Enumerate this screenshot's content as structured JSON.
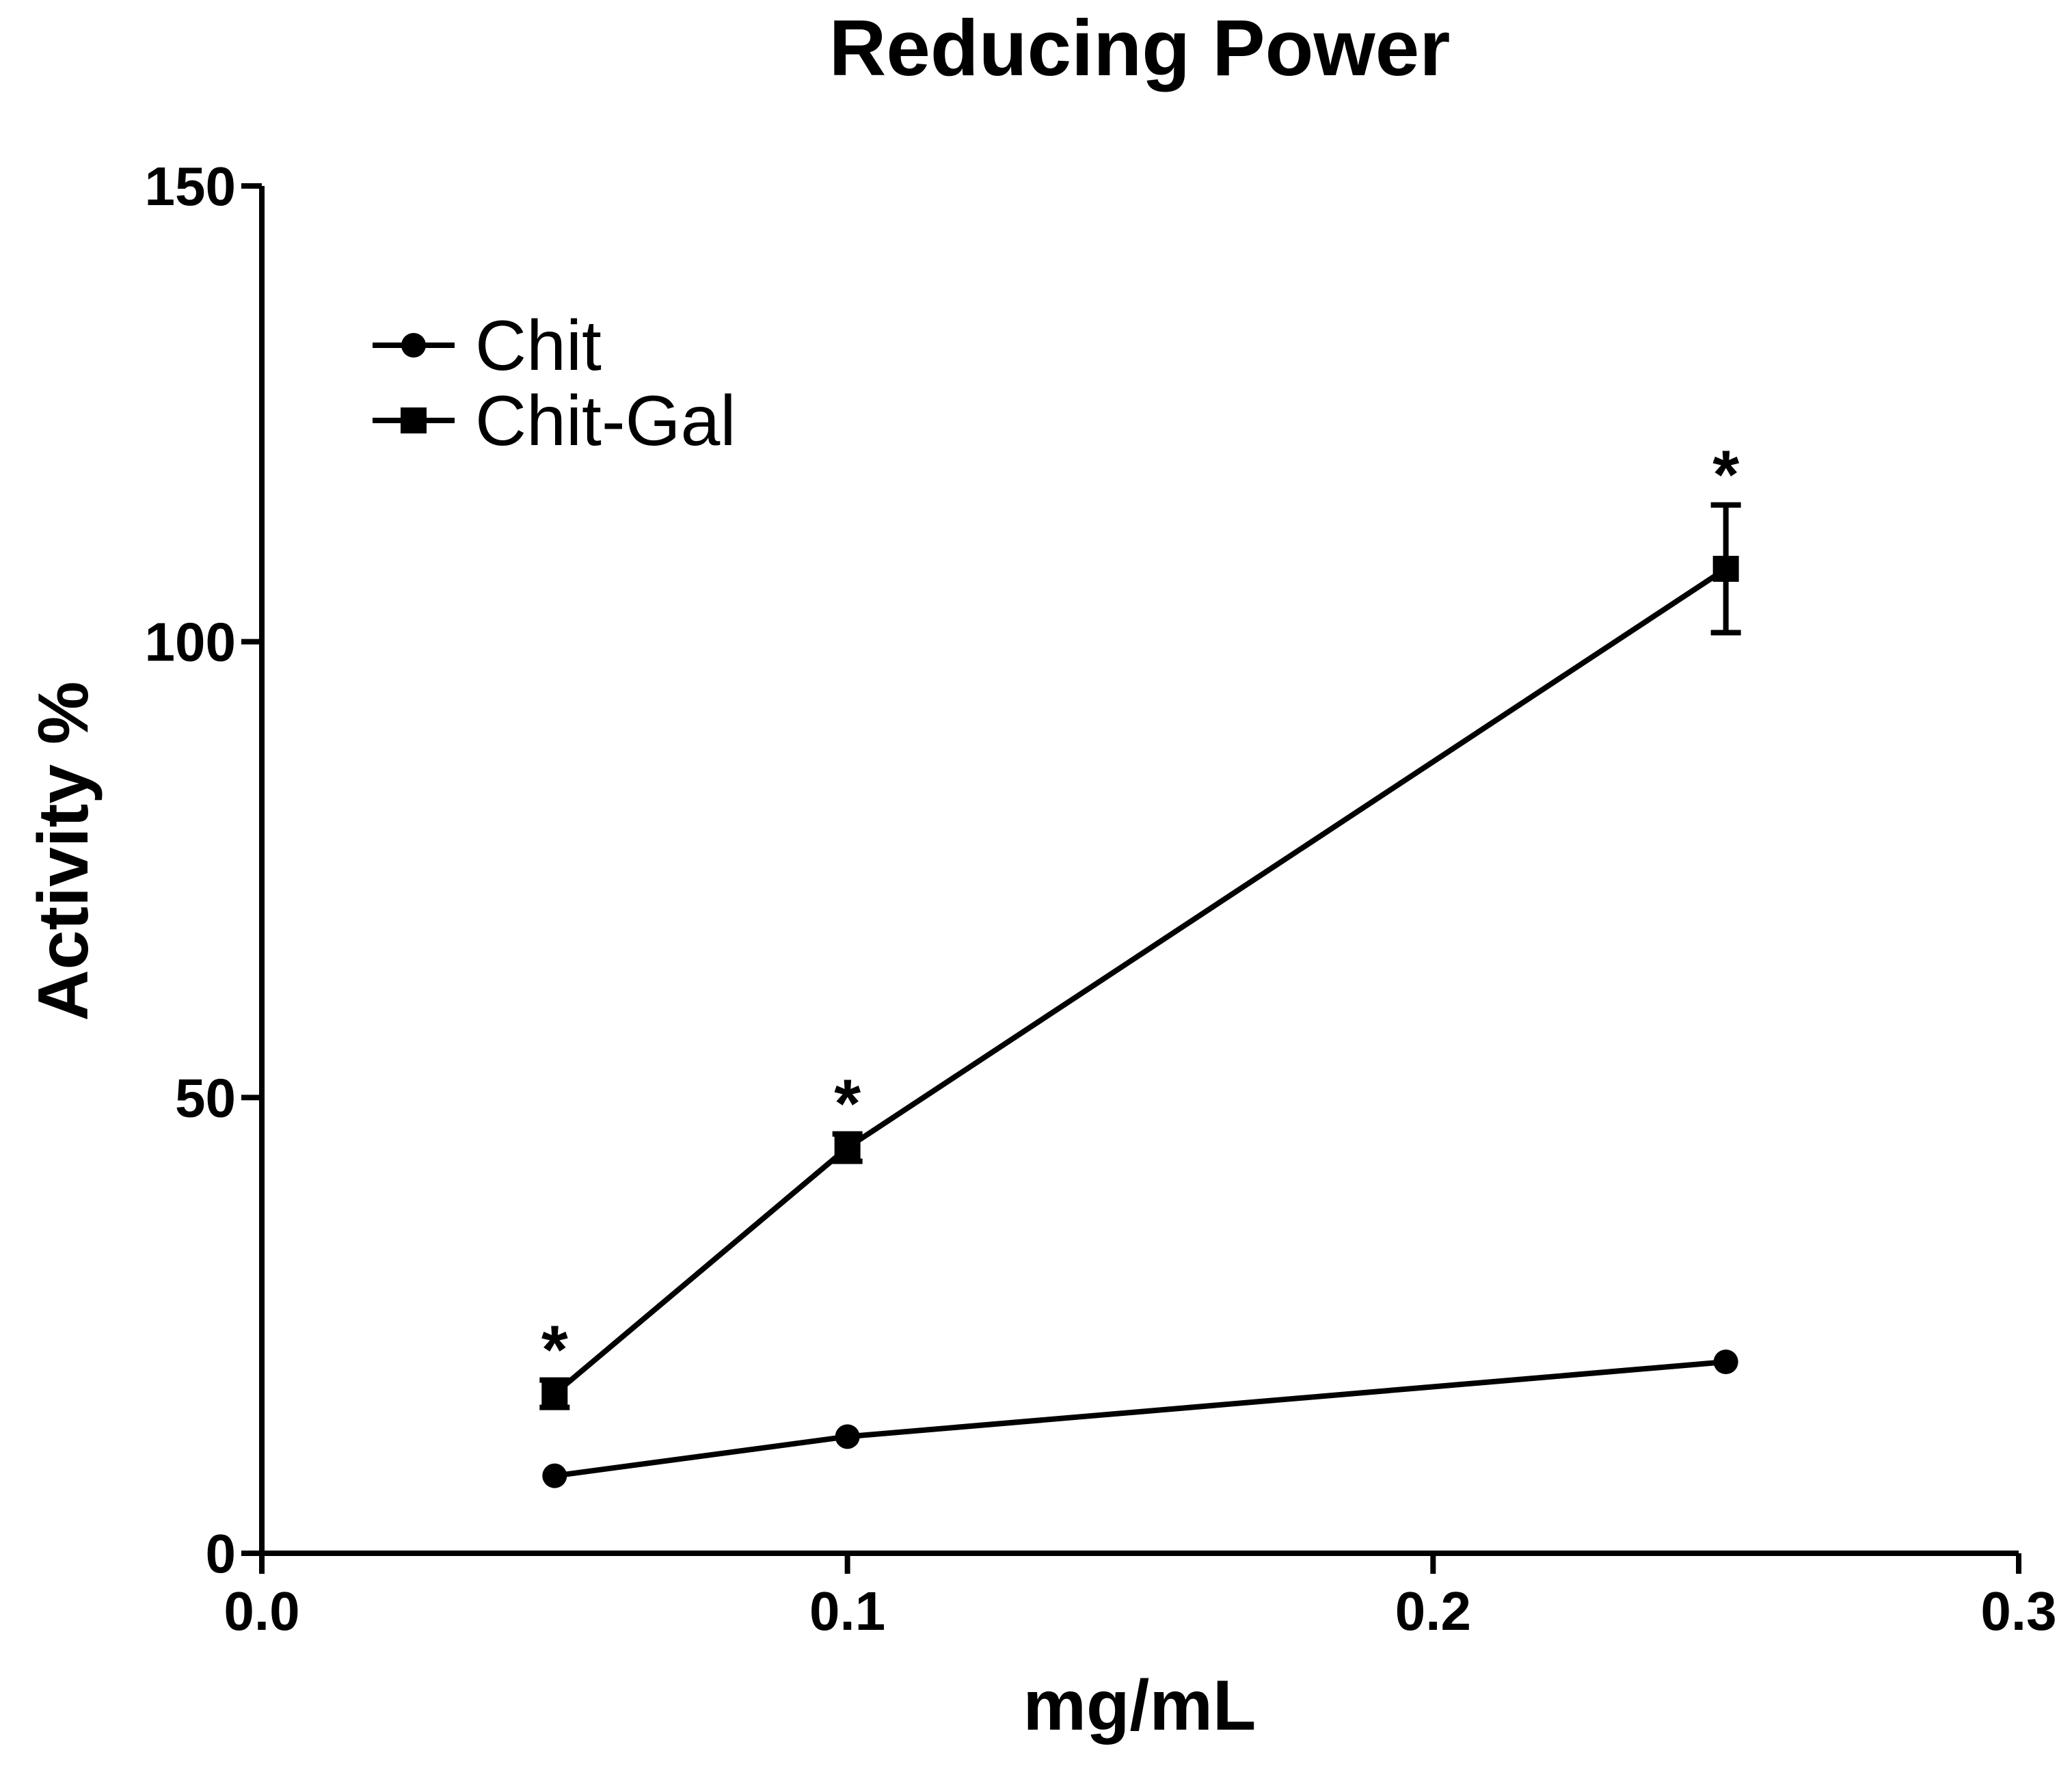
{
  "chart_data": {
    "type": "line",
    "title": "Reducing Power",
    "xlabel": "mg/mL",
    "ylabel": "Activity %",
    "xlim": [
      0.0,
      0.3
    ],
    "ylim": [
      0,
      150
    ],
    "x_ticks": [
      0.0,
      0.1,
      0.2,
      0.3
    ],
    "x_tick_labels": [
      "0.0",
      "0.1",
      "0.2",
      "0.3"
    ],
    "y_ticks": [
      0,
      50,
      100,
      150
    ],
    "y_tick_labels": [
      "0",
      "50",
      "100",
      "150"
    ],
    "grid": false,
    "legend_position": "top-left",
    "series": [
      {
        "name": "Chit",
        "marker": "circle",
        "x": [
          0.05,
          0.1,
          0.25
        ],
        "values": [
          8.5,
          12.8,
          21.0
        ],
        "errors": [
          0,
          0,
          0
        ]
      },
      {
        "name": "Chit-Gal",
        "marker": "square",
        "x": [
          0.05,
          0.1,
          0.25
        ],
        "values": [
          17.5,
          44.5,
          108.0
        ],
        "errors": [
          1.5,
          1.5,
          7.0
        ]
      }
    ],
    "annotations": [
      {
        "text": "*",
        "series": "Chit-Gal",
        "x": 0.05
      },
      {
        "text": "*",
        "series": "Chit-Gal",
        "x": 0.1
      },
      {
        "text": "*",
        "series": "Chit-Gal",
        "x": 0.25
      }
    ]
  },
  "colors": {
    "ink": "#000000",
    "background": "#ffffff"
  }
}
